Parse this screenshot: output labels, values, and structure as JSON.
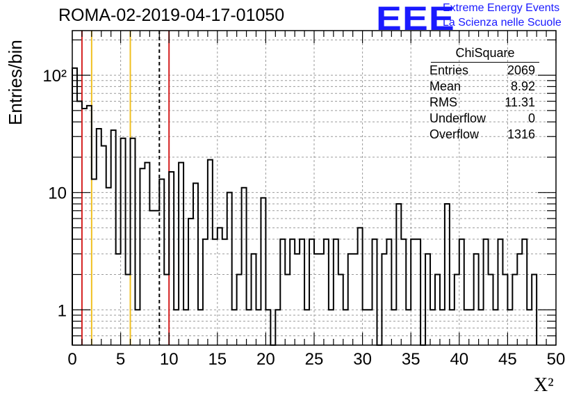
{
  "title": "ROMA-02-2019-04-17-01050",
  "logo": {
    "text": "EEE",
    "line1": "Extreme Energy Events",
    "line2": "La Scienza nelle Scuole",
    "color": "#1a1aff"
  },
  "stats": {
    "title": "ChiSquare",
    "rows": [
      {
        "label": "Entries",
        "value": "2069"
      },
      {
        "label": "Mean",
        "value": "8.92"
      },
      {
        "label": "RMS",
        "value": "11.31"
      },
      {
        "label": "Underflow",
        "value": "0"
      },
      {
        "label": "Overflow",
        "value": "1316"
      }
    ]
  },
  "chart_data": {
    "type": "histogram",
    "title": "ROMA-02-2019-04-17-01050",
    "xlabel": "X²",
    "ylabel": "Entries/bin",
    "xlim": [
      0,
      50
    ],
    "ylim": [
      0.5,
      240
    ],
    "yscale": "log",
    "grid": true,
    "bin_width": 0.5,
    "bin_start": 0,
    "x_ticks": [
      "0",
      "5",
      "10",
      "15",
      "20",
      "25",
      "30",
      "35",
      "40",
      "45",
      "50"
    ],
    "y_ticks": [
      {
        "value": 1,
        "label": "1"
      },
      {
        "value": 10,
        "label": "10"
      },
      {
        "value": 100,
        "label": "10²"
      }
    ],
    "counts": [
      115,
      60,
      52,
      55,
      13,
      35,
      25,
      11,
      34,
      3,
      29,
      2,
      29,
      1,
      16,
      18,
      7,
      7,
      13,
      2,
      15,
      1,
      18,
      1,
      6,
      12,
      1,
      4,
      19,
      4,
      5,
      4,
      10,
      1,
      2,
      11,
      1,
      3,
      1,
      9,
      1,
      0,
      1,
      4,
      2,
      4,
      3,
      4,
      1,
      4,
      3,
      3,
      4,
      1,
      4,
      2,
      1,
      3,
      3,
      5,
      1,
      1,
      4,
      0,
      3,
      4,
      1,
      8,
      4,
      1,
      4,
      4,
      0,
      3,
      1,
      2,
      1,
      8,
      1,
      2,
      4,
      1,
      1,
      3,
      1,
      4,
      2,
      1,
      4,
      2,
      1,
      2,
      3,
      4,
      1,
      2
    ],
    "vertical_lines": [
      {
        "x": 1,
        "color": "#d42020",
        "style": "solid"
      },
      {
        "x": 2,
        "color": "#f0c020",
        "style": "solid"
      },
      {
        "x": 6,
        "color": "#f0c020",
        "style": "solid"
      },
      {
        "x": 9,
        "color": "#000000",
        "style": "dashed"
      },
      {
        "x": 10,
        "color": "#d42020",
        "style": "solid"
      }
    ]
  }
}
